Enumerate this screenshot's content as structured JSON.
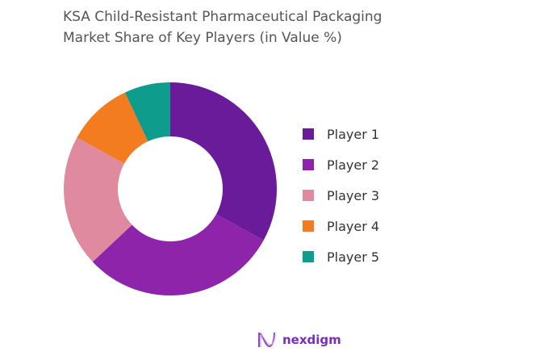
{
  "chart_data": {
    "type": "pie",
    "title_line1": "KSA Child-Resistant Pharmaceutical Packaging",
    "title_line2": "Market Share of Key Players (in Value %)",
    "donut": true,
    "legend_position": "right",
    "categories": [
      "Player 1",
      "Player 2",
      "Player 3",
      "Player 4",
      "Player 5"
    ],
    "values": [
      33,
      30,
      20,
      10,
      7
    ],
    "colors": [
      "#6a1b9a",
      "#8e24aa",
      "#e08aa0",
      "#f47c20",
      "#0e9c8c"
    ]
  },
  "brand": {
    "name": "nexdigm"
  }
}
